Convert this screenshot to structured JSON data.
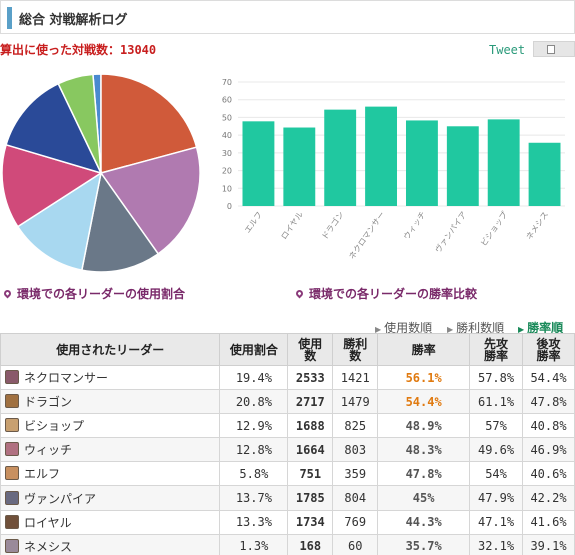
{
  "header": {
    "title": "総合 対戦解析ログ"
  },
  "summary": {
    "battles_text": "算出に使った対戦数：13040"
  },
  "share": {
    "tweet_label": "Tweet"
  },
  "captions": {
    "usage": "環境での各リーダーの使用割合",
    "winrate": "環境での各リーダーの勝率比較"
  },
  "sort_options": [
    "使用数順",
    "勝利数順",
    "勝率順"
  ],
  "table": {
    "headers": [
      "使用されたリーダー",
      "使用割合",
      "使用\n数",
      "勝利\n数",
      "勝率",
      "先攻\n勝率",
      "後攻\n勝率"
    ],
    "rows": [
      {
        "leader": "ネクロマンサー",
        "share": "19.4%",
        "uses": "2533",
        "wins": "1421",
        "winrate": "56.1%",
        "first": "57.8%",
        "second": "54.4%",
        "icon_color": "#8a5a6a"
      },
      {
        "leader": "ドラゴン",
        "share": "20.8%",
        "uses": "2717",
        "wins": "1479",
        "winrate": "54.4%",
        "first": "61.1%",
        "second": "47.8%",
        "icon_color": "#a07040"
      },
      {
        "leader": "ビショップ",
        "share": "12.9%",
        "uses": "1688",
        "wins": "825",
        "winrate": "48.9%",
        "first": "57%",
        "second": "40.8%",
        "icon_color": "#c8a070"
      },
      {
        "leader": "ウィッチ",
        "share": "12.8%",
        "uses": "1664",
        "wins": "803",
        "winrate": "48.3%",
        "first": "49.6%",
        "second": "46.9%",
        "icon_color": "#b07080"
      },
      {
        "leader": "エルフ",
        "share": "5.8%",
        "uses": "751",
        "wins": "359",
        "winrate": "47.8%",
        "first": "54%",
        "second": "40.6%",
        "icon_color": "#c89060"
      },
      {
        "leader": "ヴァンパイア",
        "share": "13.7%",
        "uses": "1785",
        "wins": "804",
        "winrate": "45%",
        "first": "47.9%",
        "second": "42.2%",
        "icon_color": "#6a6a80"
      },
      {
        "leader": "ロイヤル",
        "share": "13.3%",
        "uses": "1734",
        "wins": "769",
        "winrate": "44.3%",
        "first": "47.1%",
        "second": "41.6%",
        "icon_color": "#70503a"
      },
      {
        "leader": "ネメシス",
        "share": "1.3%",
        "uses": "168",
        "wins": "60",
        "winrate": "35.7%",
        "first": "32.1%",
        "second": "39.1%",
        "icon_color": "#9a8a9a"
      }
    ]
  },
  "chart_data": [
    {
      "type": "pie",
      "categories": [
        "ネクロマンサー",
        "ドラゴン",
        "ビショップ",
        "ウィッチ",
        "エルフ",
        "ヴァンパイア",
        "ロイヤル",
        "ネメシス"
      ],
      "values": [
        19.4,
        20.8,
        12.9,
        12.8,
        5.8,
        13.7,
        13.3,
        1.3
      ],
      "slice_order": [
        "ドラゴン",
        "ネクロマンサー",
        "ビショップ",
        "ウィッチ",
        "ヴァンパイア",
        "ロイヤル",
        "エルフ",
        "ネメシス"
      ],
      "colors": {
        "ネメシス": "#4a8ad0",
        "ドラゴン": "#d05a3a",
        "ネクロマンサー": "#b07ab0",
        "ビショップ": "#6a7888",
        "ウィッチ": "#a8d8f0",
        "ヴァンパイア": "#d04a7a",
        "ロイヤル": "#2a4a98",
        "エルフ": "#88c860"
      }
    },
    {
      "type": "bar",
      "categories": [
        "エルフ",
        "ロイヤル",
        "ドラゴン",
        "ネクロマンサー",
        "ウィッチ",
        "ヴァンパイア",
        "ビショップ",
        "ネメシス"
      ],
      "values": [
        47.8,
        44.3,
        54.4,
        56.1,
        48.3,
        45,
        48.9,
        35.7
      ],
      "ylim": [
        0,
        70
      ],
      "yticks": [
        "0",
        "10",
        "20",
        "30",
        "40",
        "50",
        "60",
        "70"
      ],
      "grid": true,
      "bar_color": "#20c8a0"
    }
  ]
}
